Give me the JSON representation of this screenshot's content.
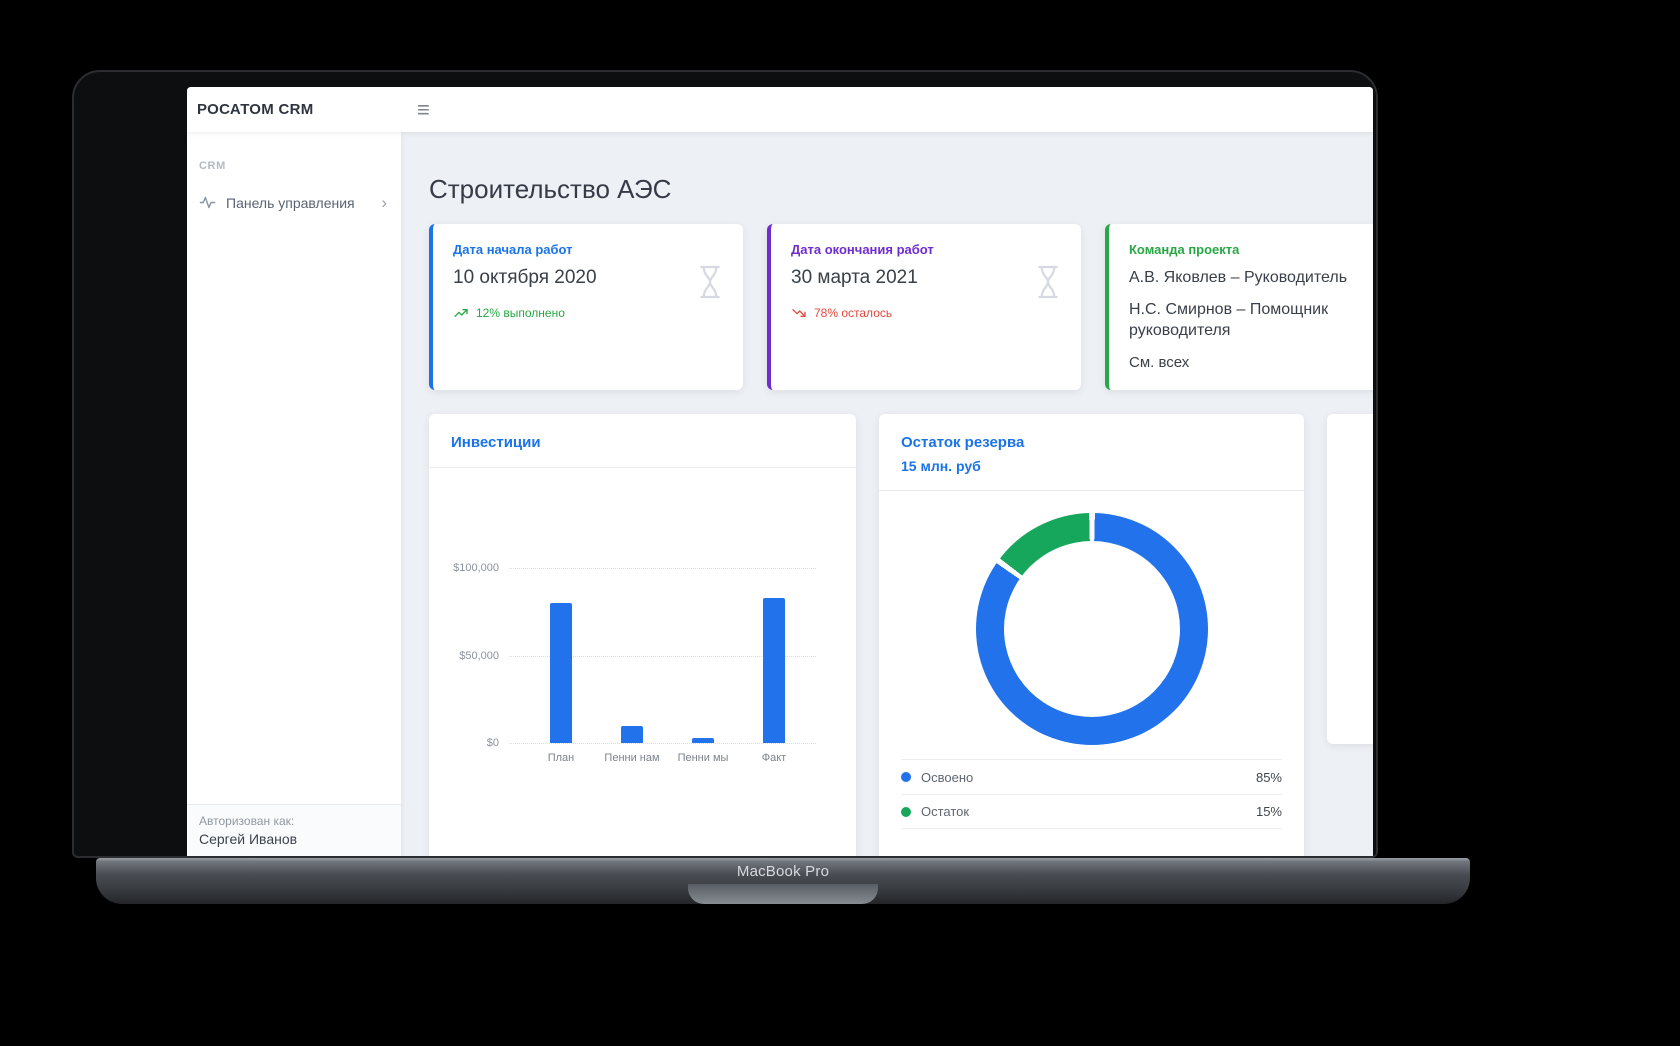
{
  "colors": {
    "primary": "#1a73e8",
    "purple": "#6f2ccf",
    "success": "#28a745",
    "danger": "#e5493d",
    "chart_blue": "#2273eb",
    "chart_green": "#17a75c",
    "bg": "#edf0f5"
  },
  "device": {
    "label": "MacBook Pro"
  },
  "app": {
    "brand": "РОСАТОМ CRM",
    "icons": {
      "hamburger": "≡",
      "chevron_right": "›"
    },
    "sidebar": {
      "section_label": "CRM",
      "items": [
        {
          "label": "Панель управления"
        }
      ],
      "footer": {
        "caption": "Авторизован как:",
        "user": "Сергей Иванов"
      }
    },
    "main": {
      "title": "Строительство АЭС",
      "stat_cards": [
        {
          "accent": "#1a73e8",
          "title": "Дата начала работ",
          "value": "10 октября 2020",
          "trend": "up",
          "trend_text": "12% выполнено"
        },
        {
          "accent": "#6f2ccf",
          "title": "Дата окончания работ",
          "value": "30 марта 2021",
          "trend": "down",
          "trend_text": "78% осталось"
        },
        {
          "accent": "#28a745",
          "title": "Команда проекта",
          "members": [
            "А.В. Яковлев – Руководитель",
            "Н.С. Смирнов – Помощник руководителя"
          ],
          "link": "См. всех"
        }
      ],
      "investments": {
        "title": "Инвестиции"
      },
      "reserve": {
        "title": "Остаток резерва",
        "subtitle": "15 млн. руб",
        "legend": [
          {
            "label": "Освоено",
            "value": "85%"
          },
          {
            "label": "Остаток",
            "value": "15%"
          }
        ]
      }
    }
  },
  "chart_data": [
    {
      "type": "bar",
      "title": "Инвестиции",
      "categories": [
        "План",
        "Пенни нам",
        "Пенни мы",
        "Факт"
      ],
      "values": [
        80000,
        10000,
        3000,
        83000
      ],
      "yticks": [
        0,
        50000,
        100000
      ],
      "ytick_labels": [
        "$0",
        "$50,000",
        "$100,000"
      ],
      "ylim": [
        0,
        100000
      ],
      "grid": "dotted-horizontal",
      "bar_color": "#2273eb"
    },
    {
      "type": "pie",
      "title": "Остаток резерва",
      "donut": true,
      "labels": [
        "Освоено",
        "Остаток"
      ],
      "values": [
        85,
        15
      ],
      "colors": [
        "#2273eb",
        "#17a75c"
      ],
      "legend_position": "bottom"
    }
  ]
}
